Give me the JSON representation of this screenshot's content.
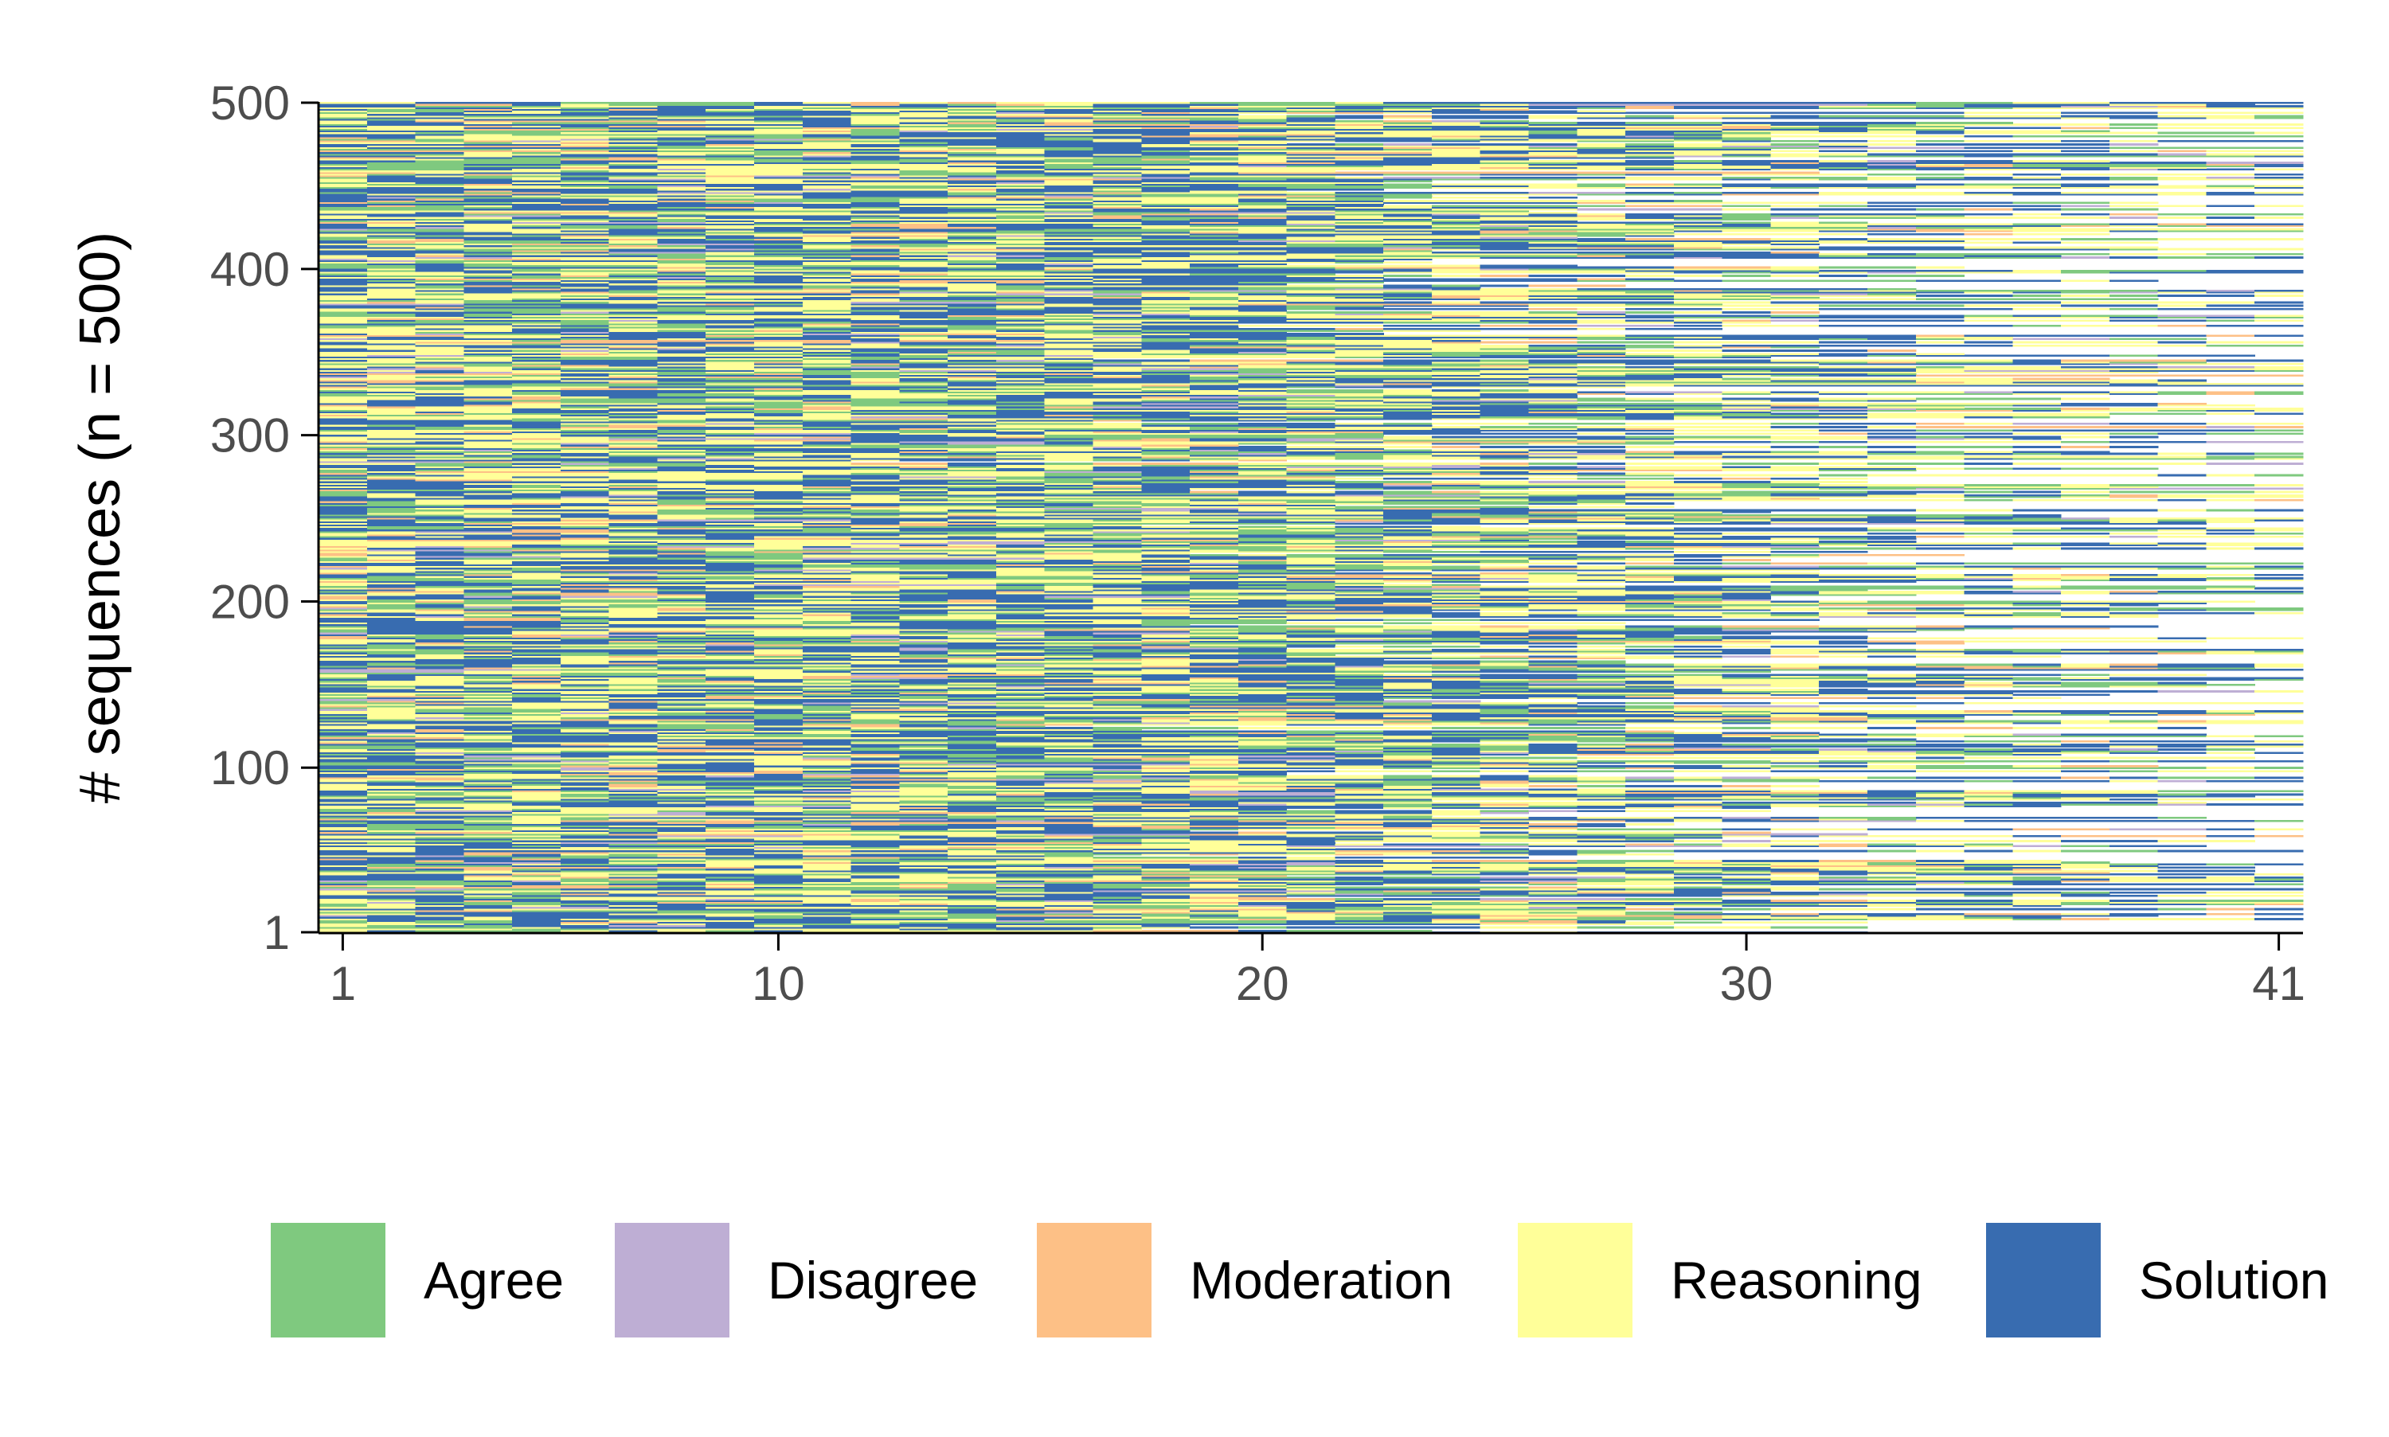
{
  "chart_data": {
    "type": "heatmap",
    "subtype": "sequence index plot",
    "title": "",
    "xlabel": "",
    "ylabel": "# sequences (n = 500)",
    "x_ticks": [
      "1",
      "10",
      "20",
      "30",
      "41"
    ],
    "y_ticks": [
      "1",
      "100",
      "200",
      "300",
      "400",
      "500"
    ],
    "xlim": [
      1,
      41
    ],
    "ylim": [
      1,
      500
    ],
    "n_sequences": 500,
    "max_length": 41,
    "grid": false,
    "legend_position": "bottom",
    "states": [
      {
        "name": "Agree",
        "color": "#7fc97f"
      },
      {
        "name": "Disagree",
        "color": "#beaed4"
      },
      {
        "name": "Moderation",
        "color": "#fdc086"
      },
      {
        "name": "Reasoning",
        "color": "#ffff99"
      },
      {
        "name": "Solution",
        "color": "#386cb0"
      }
    ],
    "approx_state_shares": {
      "Agree": 0.2,
      "Disagree": 0.03,
      "Moderation": 0.07,
      "Reasoning": 0.33,
      "Solution": 0.37
    },
    "sequence_length_profile": [
      {
        "position": 1,
        "share_of_sequences_present": 1.0
      },
      {
        "position": 10,
        "share_of_sequences_present": 1.0
      },
      {
        "position": 15,
        "share_of_sequences_present": 0.99
      },
      {
        "position": 20,
        "share_of_sequences_present": 0.96
      },
      {
        "position": 25,
        "share_of_sequences_present": 0.82
      },
      {
        "position": 30,
        "share_of_sequences_present": 0.62
      },
      {
        "position": 35,
        "share_of_sequences_present": 0.45
      },
      {
        "position": 41,
        "share_of_sequences_present": 0.28
      }
    ]
  }
}
